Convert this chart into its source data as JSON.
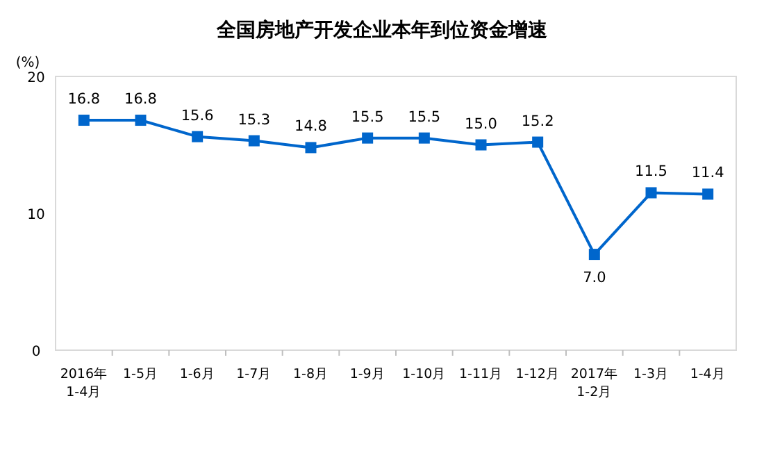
{
  "chart_data": {
    "type": "line",
    "title": "全国房地产开发企业本年到位资金增速",
    "ylabel": "(%)",
    "categories": [
      "2016年\n1-4月",
      "1-5月",
      "1-6月",
      "1-7月",
      "1-8月",
      "1-9月",
      "1-10月",
      "1-11月",
      "1-12月",
      "2017年\n1-2月",
      "1-3月",
      "1-4月"
    ],
    "values": [
      16.8,
      16.8,
      15.6,
      15.3,
      14.8,
      15.5,
      15.5,
      15.0,
      15.2,
      7.0,
      11.5,
      11.4
    ],
    "value_labels": [
      "16.8",
      "16.8",
      "15.6",
      "15.3",
      "14.8",
      "15.5",
      "15.5",
      "15.0",
      "15.2",
      "7.0",
      "11.5",
      "11.4"
    ],
    "color": "#0066cc",
    "ylim": [
      0,
      20
    ],
    "yticks": [
      0,
      10,
      20
    ],
    "marker": "square",
    "grid": false
  }
}
